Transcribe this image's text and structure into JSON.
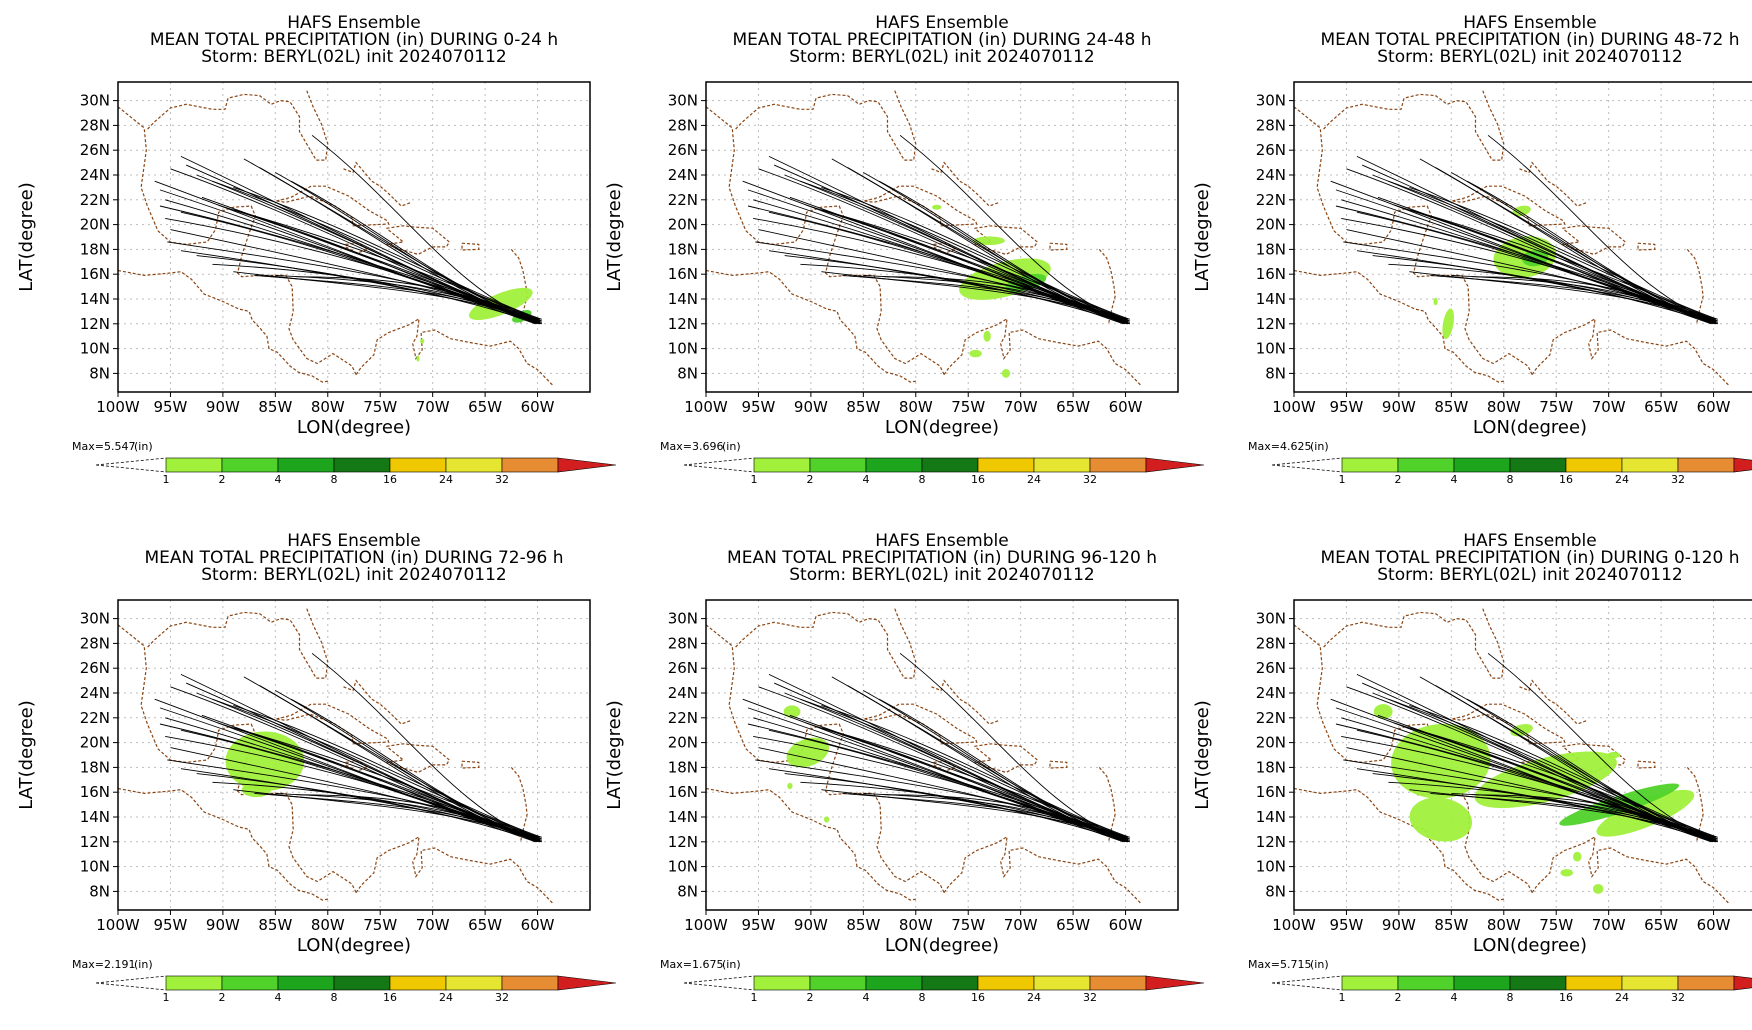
{
  "figure": {
    "background": "#ffffff"
  },
  "colorbar": {
    "unit": "(in)",
    "levels": [
      "1",
      "2",
      "4",
      "8",
      "16",
      "24",
      "32"
    ],
    "colors": [
      "#a0f03c",
      "#50d22a",
      "#1ea51e",
      "#147814",
      "#f0c800",
      "#e6e632",
      "#e68c32",
      "#d21e1e"
    ]
  },
  "style": {
    "land_color": "#8b4513",
    "grid_color": "#bdbdbd",
    "track_color": "#000000",
    "precip_light": "#7fff00",
    "precip_dark": "#55c43a"
  },
  "chart_data": [
    {
      "type": "map",
      "title_lines": [
        "HAFS Ensemble",
        "MEAN TOTAL PRECIPITATION (in) DURING  0-24 h",
        "Storm: BERYL(02L) init 2024070112"
      ],
      "xlabel": "LON(degree)",
      "ylabel": "LAT(degree)",
      "xlim": [
        -100,
        -55
      ],
      "ylim": [
        6.5,
        31.5
      ],
      "xticks": [
        "100W",
        "95W",
        "90W",
        "85W",
        "80W",
        "75W",
        "70W",
        "65W",
        "60W"
      ],
      "yticks": [
        "30N",
        "28N",
        "26N",
        "24N",
        "22N",
        "20N",
        "18N",
        "16N",
        "14N",
        "12N",
        "10N",
        "8N"
      ],
      "max_label": "Max=5.547",
      "precip_areas": [
        {
          "center": [
            -63.5,
            13.6
          ],
          "length": 6.5,
          "width": 1.7,
          "angle": -22,
          "level": "1-2"
        },
        {
          "center": [
            -61.5,
            12.6
          ],
          "length": 2.0,
          "width": 0.8,
          "angle": -25,
          "level": "2-4"
        },
        {
          "center": [
            -71.0,
            10.6
          ],
          "length": 0.4,
          "width": 0.4,
          "angle": 0,
          "level": "1-2"
        },
        {
          "center": [
            -71.4,
            9.2
          ],
          "length": 0.3,
          "width": 0.5,
          "angle": 0,
          "level": "1-2"
        }
      ]
    },
    {
      "type": "map",
      "title_lines": [
        "HAFS Ensemble",
        "MEAN TOTAL PRECIPITATION (in) DURING 24-48 h",
        "Storm: BERYL(02L) init 2024070112"
      ],
      "xlabel": "LON(degree)",
      "ylabel": "LAT(degree)",
      "xlim": [
        -100,
        -55
      ],
      "ylim": [
        6.5,
        31.5
      ],
      "xticks": [
        "100W",
        "95W",
        "90W",
        "85W",
        "80W",
        "75W",
        "70W",
        "65W",
        "60W"
      ],
      "yticks": [
        "30N",
        "28N",
        "26N",
        "24N",
        "22N",
        "20N",
        "18N",
        "16N",
        "14N",
        "12N",
        "10N",
        "8N"
      ],
      "max_label": "Max=3.696",
      "precip_areas": [
        {
          "center": [
            -71.5,
            15.6
          ],
          "length": 9.0,
          "width": 2.8,
          "angle": -15,
          "level": "1-2"
        },
        {
          "center": [
            -69.5,
            15.3
          ],
          "length": 4.0,
          "width": 1.2,
          "angle": -15,
          "level": "2-4"
        },
        {
          "center": [
            -73.0,
            18.7
          ],
          "length": 3.0,
          "width": 0.7,
          "angle": 0,
          "level": "1-2"
        },
        {
          "center": [
            -78.0,
            21.4
          ],
          "length": 0.9,
          "width": 0.4,
          "angle": 0,
          "level": "1-2"
        },
        {
          "center": [
            -73.2,
            11.0
          ],
          "length": 0.7,
          "width": 0.9,
          "angle": 0,
          "level": "1-2"
        },
        {
          "center": [
            -74.3,
            9.6
          ],
          "length": 1.2,
          "width": 0.6,
          "angle": 0,
          "level": "1-2"
        },
        {
          "center": [
            -71.4,
            8.0
          ],
          "length": 0.8,
          "width": 0.7,
          "angle": 0,
          "level": "1-2"
        }
      ]
    },
    {
      "type": "map",
      "title_lines": [
        "HAFS Ensemble",
        "MEAN TOTAL PRECIPITATION (in) DURING 48-72 h",
        "Storm: BERYL(02L) init 2024070112"
      ],
      "xlabel": "LON(degree)",
      "ylabel": "LAT(degree)",
      "xlim": [
        -100,
        -55
      ],
      "ylim": [
        6.5,
        31.5
      ],
      "xticks": [
        "100W",
        "95W",
        "90W",
        "85W",
        "80W",
        "75W",
        "70W",
        "65W",
        "60W"
      ],
      "yticks": [
        "30N",
        "28N",
        "26N",
        "24N",
        "22N",
        "20N",
        "18N",
        "16N",
        "14N",
        "12N",
        "10N",
        "8N"
      ],
      "max_label": "Max=4.625",
      "precip_areas": [
        {
          "center": [
            -78.0,
            17.4
          ],
          "length": 6.0,
          "width": 3.3,
          "angle": -8,
          "level": "1-2"
        },
        {
          "center": [
            -77.0,
            17.3
          ],
          "length": 2.5,
          "width": 1.3,
          "angle": -8,
          "level": "2-4"
        },
        {
          "center": [
            -78.3,
            21.1
          ],
          "length": 1.8,
          "width": 0.8,
          "angle": -15,
          "level": "1-2"
        },
        {
          "center": [
            -85.3,
            12.0
          ],
          "length": 1.0,
          "width": 2.5,
          "angle": 10,
          "level": "1-2"
        },
        {
          "center": [
            -86.5,
            13.8
          ],
          "length": 0.4,
          "width": 0.6,
          "angle": 0,
          "level": "1-2"
        }
      ]
    },
    {
      "type": "map",
      "title_lines": [
        "HAFS Ensemble",
        "MEAN TOTAL PRECIPITATION (in) DURING 72-96 h",
        "Storm: BERYL(02L) init 2024070112"
      ],
      "xlabel": "LON(degree)",
      "ylabel": "LAT(degree)",
      "xlim": [
        -100,
        -55
      ],
      "ylim": [
        6.5,
        31.5
      ],
      "xticks": [
        "100W",
        "95W",
        "90W",
        "85W",
        "80W",
        "75W",
        "70W",
        "65W",
        "60W"
      ],
      "yticks": [
        "30N",
        "28N",
        "26N",
        "24N",
        "22N",
        "20N",
        "18N",
        "16N",
        "14N",
        "12N",
        "10N",
        "8N"
      ],
      "max_label": "Max=2.191",
      "precip_areas": [
        {
          "center": [
            -86.0,
            18.5
          ],
          "length": 7.5,
          "width": 4.8,
          "angle": 0,
          "level": "1-2"
        },
        {
          "center": [
            -86.8,
            16.2
          ],
          "length": 2.8,
          "width": 1.2,
          "angle": 0,
          "level": "1-2"
        }
      ]
    },
    {
      "type": "map",
      "title_lines": [
        "HAFS Ensemble",
        "MEAN TOTAL PRECIPITATION (in) DURING 96-120 h",
        "Storm: BERYL(02L) init 2024070112"
      ],
      "xlabel": "LON(degree)",
      "ylabel": "LAT(degree)",
      "xlim": [
        -100,
        -55
      ],
      "ylim": [
        6.5,
        31.5
      ],
      "xticks": [
        "100W",
        "95W",
        "90W",
        "85W",
        "80W",
        "75W",
        "70W",
        "65W",
        "60W"
      ],
      "yticks": [
        "30N",
        "28N",
        "26N",
        "24N",
        "22N",
        "20N",
        "18N",
        "16N",
        "14N",
        "12N",
        "10N",
        "8N"
      ],
      "max_label": "Max=1.675",
      "precip_areas": [
        {
          "center": [
            -90.3,
            19.2
          ],
          "length": 4.2,
          "width": 2.2,
          "angle": -20,
          "level": "1-2"
        },
        {
          "center": [
            -91.8,
            22.5
          ],
          "length": 1.6,
          "width": 1.0,
          "angle": 0,
          "level": "1-2"
        },
        {
          "center": [
            -92.0,
            16.5
          ],
          "length": 0.5,
          "width": 0.5,
          "angle": 0,
          "level": "1-2"
        },
        {
          "center": [
            -88.5,
            13.8
          ],
          "length": 0.5,
          "width": 0.5,
          "angle": 0,
          "level": "1-2"
        }
      ]
    },
    {
      "type": "map",
      "title_lines": [
        "HAFS Ensemble",
        "MEAN TOTAL PRECIPITATION (in) DURING 0-120 h",
        "Storm: BERYL(02L) init 2024070112"
      ],
      "xlabel": "LON(degree)",
      "ylabel": "LAT(degree)",
      "xlim": [
        -100,
        -55
      ],
      "ylim": [
        6.5,
        31.5
      ],
      "xticks": [
        "100W",
        "95W",
        "90W",
        "85W",
        "80W",
        "75W",
        "70W",
        "65W",
        "60W"
      ],
      "yticks": [
        "30N",
        "28N",
        "26N",
        "24N",
        "22N",
        "20N",
        "18N",
        "16N",
        "14N",
        "12N",
        "10N",
        "8N"
      ],
      "max_label": "Max=5.715",
      "precip_areas": [
        {
          "center": [
            -86.0,
            18.5
          ],
          "length": 9.5,
          "width": 6.0,
          "angle": -5,
          "level": "1-2"
        },
        {
          "center": [
            -76.0,
            17.0
          ],
          "length": 14.0,
          "width": 3.5,
          "angle": -15,
          "level": "1-2"
        },
        {
          "center": [
            -66.5,
            14.3
          ],
          "length": 10.0,
          "width": 2.2,
          "angle": -22,
          "level": "1-2"
        },
        {
          "center": [
            -69.0,
            15.0
          ],
          "length": 12.0,
          "width": 1.4,
          "angle": -18,
          "level": "2-4"
        },
        {
          "center": [
            -86.0,
            13.8
          ],
          "length": 6.0,
          "width": 3.5,
          "angle": 10,
          "level": "1-2"
        },
        {
          "center": [
            -91.5,
            22.5
          ],
          "length": 1.8,
          "width": 1.2,
          "angle": 0,
          "level": "1-2"
        },
        {
          "center": [
            -78.3,
            21.0
          ],
          "length": 2.2,
          "width": 0.9,
          "angle": -15,
          "level": "1-2"
        },
        {
          "center": [
            -73.0,
            10.8
          ],
          "length": 0.8,
          "width": 0.8,
          "angle": 0,
          "level": "1-2"
        },
        {
          "center": [
            -74.0,
            9.5
          ],
          "length": 1.2,
          "width": 0.6,
          "angle": 0,
          "level": "1-2"
        },
        {
          "center": [
            -71.0,
            8.2
          ],
          "length": 1.0,
          "width": 0.8,
          "angle": 0,
          "level": "1-2"
        },
        {
          "center": [
            -69.5,
            19.0
          ],
          "length": 1.2,
          "width": 0.5,
          "angle": 0,
          "level": "1-2"
        }
      ]
    }
  ]
}
